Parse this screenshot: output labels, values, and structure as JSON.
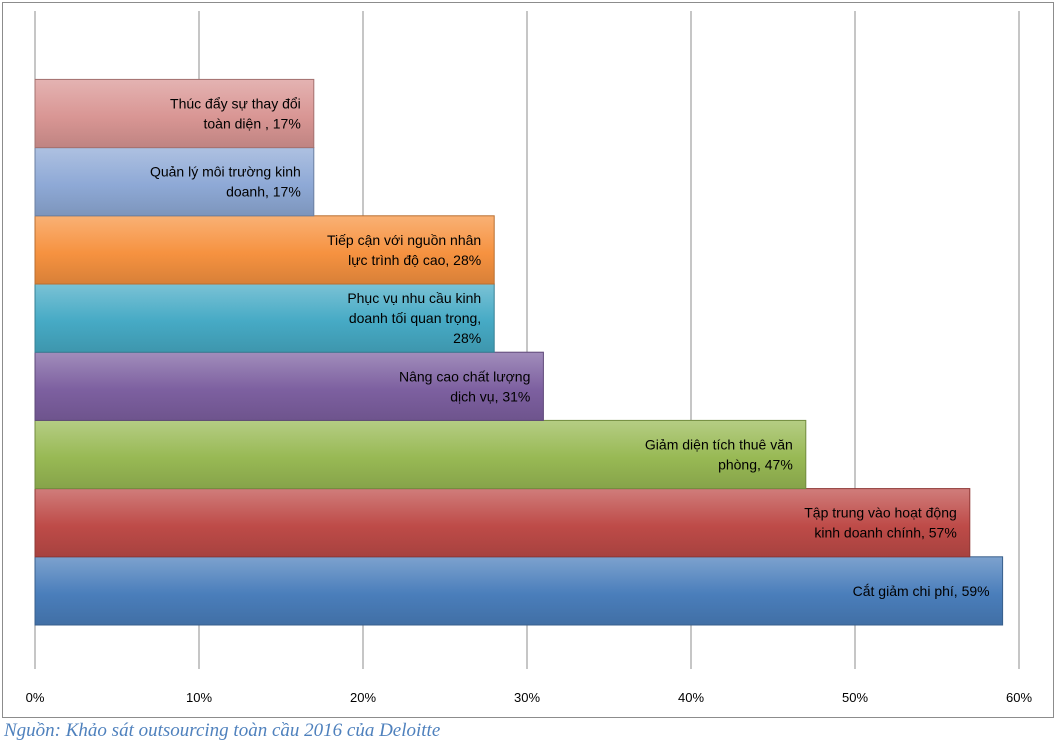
{
  "chart_data": {
    "type": "bar",
    "orientation": "horizontal",
    "categories": [
      "Cắt giảm chi phí",
      "Tập trung vào hoạt động kinh doanh chính",
      "Giảm diện tích thuê văn phòng",
      "Nâng cao chất lượng dịch vụ",
      "Phục vụ nhu cầu kinh doanh tối quan trọng",
      "Tiếp cận với nguồn nhân lực trình độ cao",
      "Quản lý môi trường kinh doanh",
      "Thúc đẩy sự thay đổi toàn diện"
    ],
    "values": [
      59,
      57,
      47,
      31,
      28,
      28,
      17,
      17
    ],
    "data_labels": [
      [
        "Cắt giảm chi phí, 59%"
      ],
      [
        "Tập trung vào hoạt động",
        "kinh doanh chính, 57%"
      ],
      [
        "Giảm diện tích thuê văn",
        "phòng, 47%"
      ],
      [
        "Nâng cao chất lượng",
        "dịch vụ, 31%"
      ],
      [
        "Phục vụ nhu cầu kinh",
        "doanh tối quan trọng,",
        "28%"
      ],
      [
        "Tiếp cận với nguồn nhân",
        "lực trình độ cao, 28%"
      ],
      [
        "Quản lý môi trường kinh",
        "doanh, 17%"
      ],
      [
        "Thúc đẩy sự thay đổi",
        "toàn diện , 17%"
      ]
    ],
    "colors": [
      "#4a7ebb",
      "#be4b48",
      "#98b954",
      "#7d60a0",
      "#46aac5",
      "#f69240",
      "#8ea9d6",
      "#d99694"
    ],
    "xlim": [
      0,
      60
    ],
    "x_ticks": [
      "0%",
      "10%",
      "20%",
      "30%",
      "40%",
      "50%",
      "60%"
    ],
    "x_tick_values": [
      0,
      10,
      20,
      30,
      40,
      50,
      60
    ],
    "grid": true,
    "legend": "none",
    "title": "",
    "xlabel": "",
    "ylabel": ""
  },
  "source_note": "Nguồn: Khảo sát outsourcing toàn cầu 2016 của Deloitte"
}
